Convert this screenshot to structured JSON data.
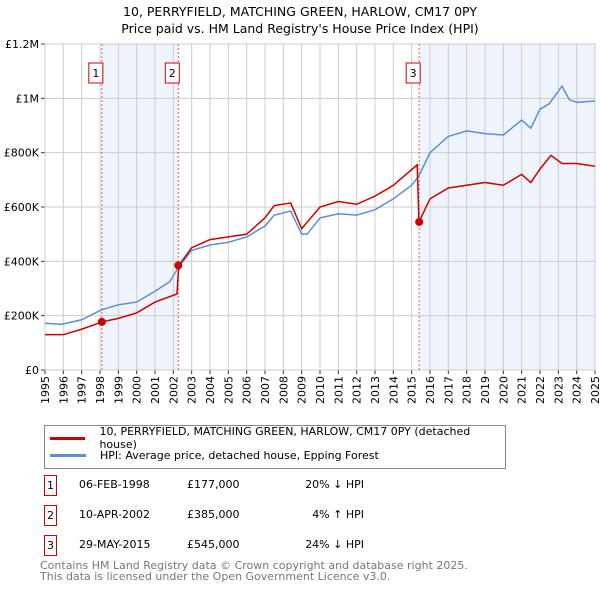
{
  "title": {
    "line1": "10, PERRYFIELD, MATCHING GREEN, HARLOW, CM17 0PY",
    "line2": "Price paid vs. HM Land Registry's House Price Index (HPI)"
  },
  "colors": {
    "property": "#cc0000",
    "hpi": "#5b8fd0",
    "shade": "#eef3fc",
    "grid": "#cccccc",
    "marker_line": "#e06060"
  },
  "chart_data": {
    "type": "line",
    "title": "Price paid vs. HM Land Registry's House Price Index (HPI)",
    "xlim": [
      1995,
      2025
    ],
    "ylim": [
      0,
      1200000
    ],
    "xticks": [
      "1995",
      "1996",
      "1997",
      "1998",
      "1999",
      "2000",
      "2001",
      "2002",
      "2003",
      "2004",
      "2005",
      "2006",
      "2007",
      "2008",
      "2009",
      "2010",
      "2011",
      "2012",
      "2013",
      "2014",
      "2015",
      "2016",
      "2017",
      "2018",
      "2019",
      "2020",
      "2021",
      "2022",
      "2023",
      "2024",
      "2025"
    ],
    "yticks": [
      {
        "v": 0,
        "label": "£0"
      },
      {
        "v": 200000,
        "label": "£200K"
      },
      {
        "v": 400000,
        "label": "£400K"
      },
      {
        "v": 600000,
        "label": "£600K"
      },
      {
        "v": 800000,
        "label": "£800K"
      },
      {
        "v": 1000000,
        "label": "£1M"
      },
      {
        "v": 1200000,
        "label": "£1.2M"
      }
    ],
    "series": [
      {
        "name": "10, PERRYFIELD, MATCHING GREEN, HARLOW, CM17 0PY (detached house)",
        "color": "#cc0000",
        "x": [
          1995,
          1996,
          1997,
          1998.1,
          1999,
          2000,
          2001,
          2002.2,
          2002.3,
          2003,
          2004,
          2005,
          2006,
          2007,
          2007.5,
          2008.4,
          2009,
          2010,
          2011,
          2012,
          2013,
          2014,
          2015.3,
          2015.4,
          2016,
          2017,
          2018,
          2019,
          2020,
          2021,
          2021.5,
          2022,
          2022.6,
          2023.2,
          2024,
          2025
        ],
        "y": [
          130000,
          130000,
          150000,
          177000,
          190000,
          210000,
          250000,
          280000,
          385000,
          450000,
          480000,
          490000,
          500000,
          560000,
          605000,
          615000,
          520000,
          600000,
          620000,
          610000,
          640000,
          680000,
          755000,
          545000,
          630000,
          670000,
          680000,
          690000,
          680000,
          720000,
          690000,
          740000,
          790000,
          760000,
          760000,
          750000
        ]
      },
      {
        "name": "HPI: Average price, detached house, Epping Forest",
        "color": "#5b8fd0",
        "x": [
          1995,
          1995.9,
          1997,
          1998.1,
          1999,
          2000,
          2001,
          2001.8,
          2002.3,
          2003,
          2004,
          2005,
          2006,
          2007,
          2007.5,
          2008.4,
          2009,
          2009.3,
          2010,
          2011,
          2012,
          2013,
          2014,
          2015,
          2015.4,
          2016,
          2017,
          2018,
          2019,
          2020,
          2021,
          2021.5,
          2022,
          2022.5,
          2023.2,
          2023.6,
          2024,
          2025
        ],
        "y": [
          172000,
          168000,
          185000,
          222000,
          240000,
          250000,
          290000,
          325000,
          380000,
          440000,
          460000,
          470000,
          490000,
          530000,
          570000,
          585000,
          500000,
          500000,
          560000,
          575000,
          570000,
          590000,
          630000,
          680000,
          715000,
          800000,
          860000,
          880000,
          870000,
          865000,
          920000,
          890000,
          960000,
          980000,
          1045000,
          995000,
          985000,
          990000
        ]
      }
    ],
    "sales": [
      {
        "n": "1",
        "date": "06-FEB-1998",
        "x": 1998.1,
        "price": "£177,000",
        "value": 177000,
        "hpi": "20% ↓ HPI"
      },
      {
        "n": "2",
        "date": "10-APR-2002",
        "x": 2002.27,
        "price": "£385,000",
        "value": 385000,
        "hpi": "4% ↑ HPI"
      },
      {
        "n": "3",
        "date": "29-MAY-2015",
        "x": 2015.41,
        "price": "£545,000",
        "value": 545000,
        "hpi": "24% ↓ HPI"
      }
    ],
    "shaded_ranges": [
      [
        1998.1,
        2002.27
      ],
      [
        2015.41,
        2025
      ]
    ]
  },
  "legend": {
    "property": "10, PERRYFIELD, MATCHING GREEN, HARLOW, CM17 0PY (detached house)",
    "hpi": "HPI: Average price, detached house, Epping Forest"
  },
  "footer": {
    "line1": "Contains HM Land Registry data © Crown copyright and database right 2025.",
    "line2": "This data is licensed under the Open Government Licence v3.0."
  }
}
